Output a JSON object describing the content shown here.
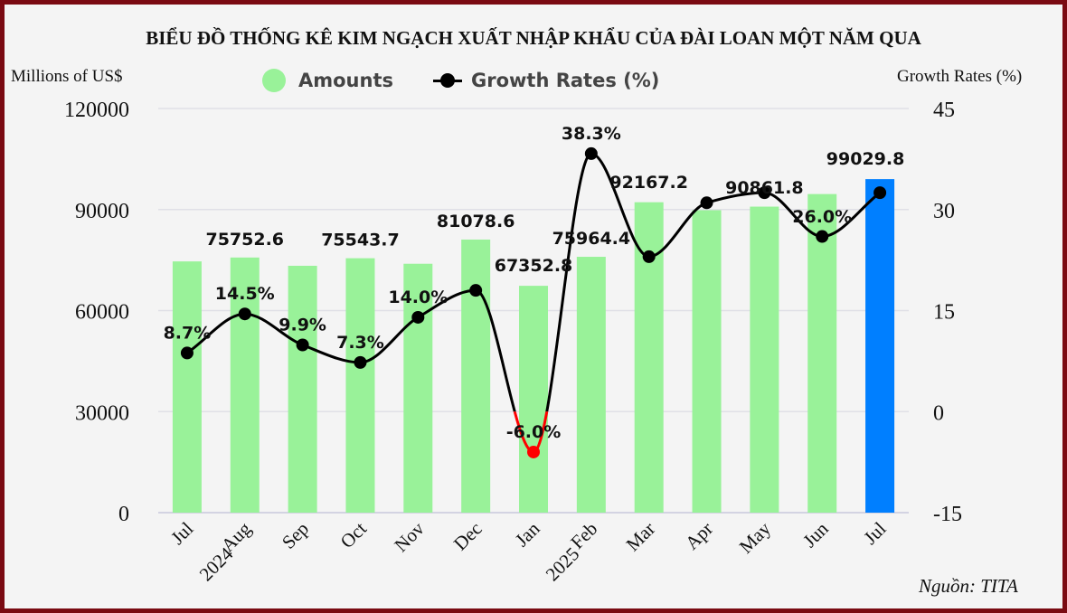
{
  "chart_data": {
    "type": "bar+line",
    "title": "BIỂU ĐỒ THỐNG KÊ KIM NGẠCH XUẤT NHẬP KHẨU CỦA ĐÀI LOAN MỘT NĂM QUA",
    "y_left_label": "Millions of US$",
    "y_right_label": "Growth Rates (%)",
    "legend_position": "top-center",
    "source": "Nguồn: TITA",
    "categories": [
      "Jul",
      "Aug",
      "Sep",
      "Oct",
      "Nov",
      "Dec",
      "Jan",
      "Feb",
      "Mar",
      "Apr",
      "May",
      "Jun",
      "Jul"
    ],
    "year_labels": [
      {
        "text": "2024",
        "category_index": 1
      },
      {
        "text": "2025",
        "category_index": 7
      }
    ],
    "y_left_lim": [
      0,
      120000
    ],
    "y_left_ticks": [
      "0",
      "30000",
      "60000",
      "90000",
      "120000"
    ],
    "y_right_lim": [
      -15,
      45
    ],
    "y_right_ticks": [
      "-15",
      "0",
      "15",
      "30",
      "45"
    ],
    "series": [
      {
        "name": "Amounts",
        "kind": "bar",
        "axis": "left",
        "color": "#99f299",
        "highlight_color": "#007fff",
        "highlight_index": 12,
        "values": [
          74600,
          75752.6,
          73300,
          75543.7,
          73900,
          81078.6,
          67352.8,
          75964.4,
          92167.2,
          89800,
          90861.8,
          94600,
          99029.8
        ],
        "labels": [
          "",
          "75752.6",
          "",
          "75543.7",
          "",
          "81078.6",
          "67352.8",
          "75964.4",
          "92167.2",
          "",
          "90861.8",
          "",
          "99029.8"
        ]
      },
      {
        "name": "Growth Rates (%)",
        "kind": "line",
        "axis": "right",
        "color": "#000000",
        "negative_color": "#ff0000",
        "values": [
          8.7,
          14.5,
          9.9,
          7.3,
          14.0,
          18.0,
          -6.0,
          38.3,
          23.0,
          31.0,
          32.5,
          26.0,
          32.5
        ],
        "labels": [
          "8.7%",
          "14.5%",
          "9.9%",
          "7.3%",
          "14.0%",
          "",
          "-6.0%",
          "38.3%",
          "",
          "",
          "",
          "26.0%",
          ""
        ]
      }
    ],
    "grid": true
  }
}
